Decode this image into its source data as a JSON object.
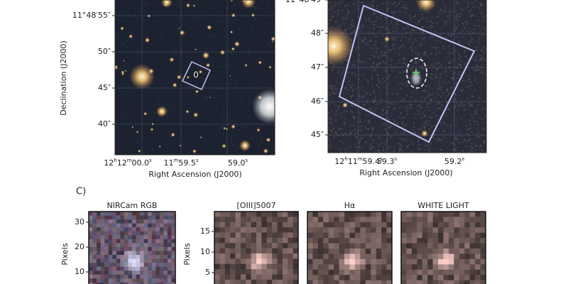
{
  "panel_a": {
    "yticks": [
      "11°48′55″",
      "50″",
      "45″",
      "40″"
    ],
    "xticks": [
      [
        "12",
        "h",
        "12",
        "m",
        "00.0",
        "s"
      ],
      [
        "11",
        "m",
        "59.5",
        "s"
      ],
      [
        "59.0",
        "s"
      ]
    ],
    "xlabel": "Right Ascension (J2000)",
    "ylabel": "Declination (J2000)"
  },
  "panel_b": {
    "yticks": [
      "11°48′49″",
      "48″",
      "47″",
      "46″",
      "45″"
    ],
    "xticks": [
      [
        "12",
        "h",
        "11",
        "m",
        "59.4",
        "s"
      ],
      [
        "59.3",
        "s"
      ],
      [
        "59.2",
        "s"
      ]
    ],
    "xlabel": "Right Ascension (J2000)"
  },
  "panel_c": {
    "label": "C)",
    "titles": [
      "NIRCam RGB",
      "[OIII]5007",
      "Hα",
      "WHITE LIGHT"
    ],
    "ylabel_left": "Pixels",
    "yticks_left": [
      "30",
      "20",
      "10"
    ],
    "ylabel_right": "Pixels",
    "yticks_right": [
      "15",
      "10",
      "5"
    ]
  }
}
